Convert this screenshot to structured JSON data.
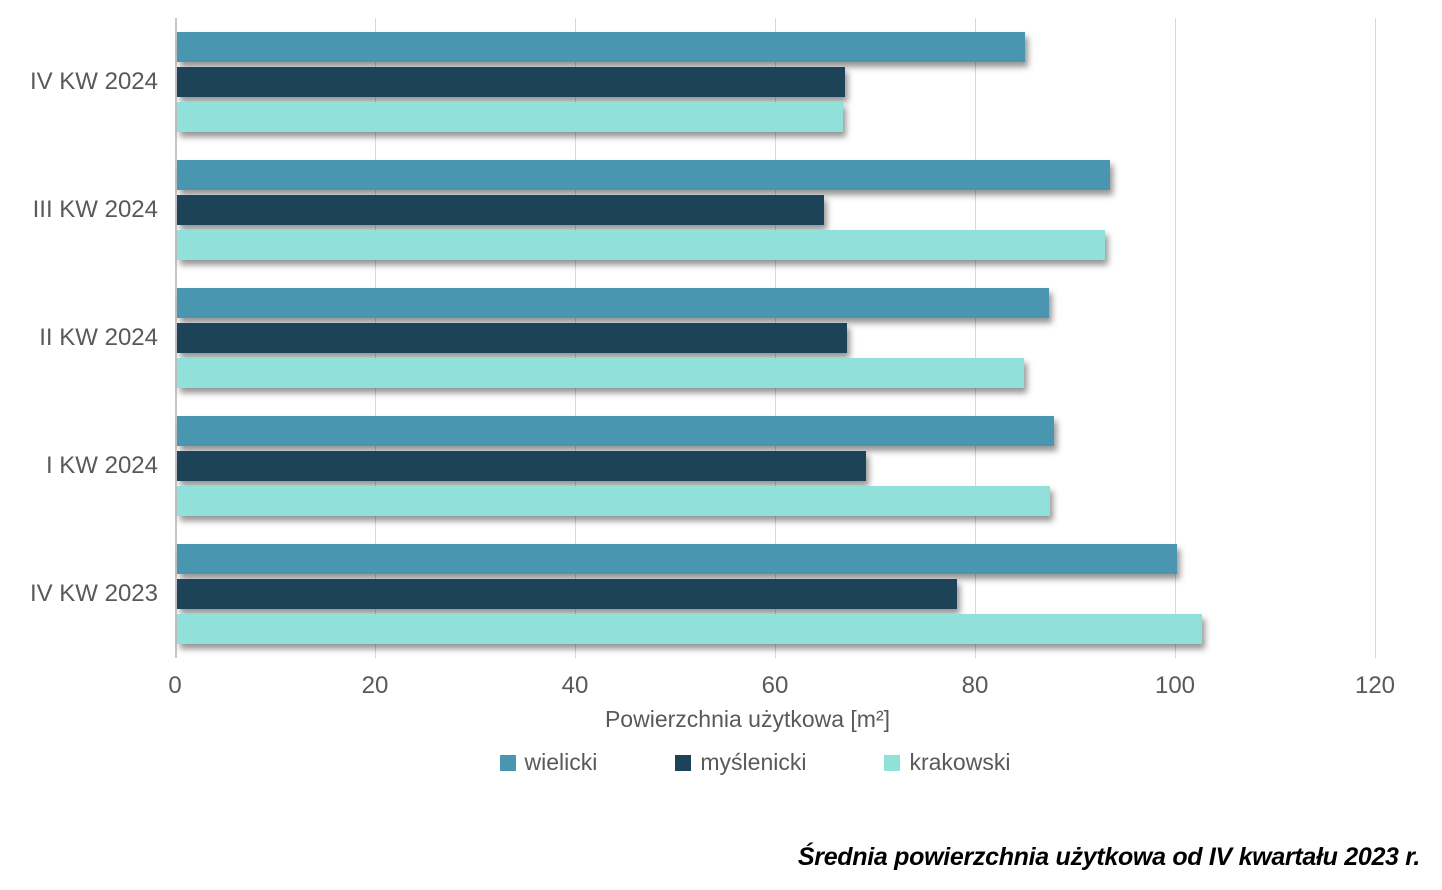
{
  "chart_data": {
    "type": "bar",
    "orientation": "horizontal",
    "title": "",
    "caption": "Średnia powierzchnia użytkowa od IV kwartału 2023 r.",
    "xlabel": "Powierzchnia użytkowa [m²]",
    "categories": [
      "IV KW 2024",
      "III KW 2024",
      "II KW 2024",
      "I KW 2024",
      "IV KW 2023"
    ],
    "series": [
      {
        "name": "wielicki",
        "color": "#4A96B0",
        "values": [
          84.8,
          93.3,
          87.2,
          87.7,
          100.0
        ]
      },
      {
        "name": "myślenicki",
        "color": "#1D4359",
        "values": [
          66.8,
          64.7,
          67.0,
          68.9,
          78.0
        ]
      },
      {
        "name": "krakowski",
        "color": "#91E1DA",
        "values": [
          66.6,
          92.8,
          84.7,
          87.3,
          102.5
        ]
      }
    ],
    "xlim": [
      0,
      120
    ],
    "xticks": [
      0,
      20,
      40,
      60,
      80,
      100,
      120
    ],
    "grid": "vertical-gridlines-only",
    "legend_position": "bottom-center"
  },
  "colors": {
    "background": "#FFFFFF",
    "gridline": "#D9D9D9",
    "axis_line": "#C6C6C6",
    "label_text": "#595959",
    "caption_text": "#000000"
  }
}
